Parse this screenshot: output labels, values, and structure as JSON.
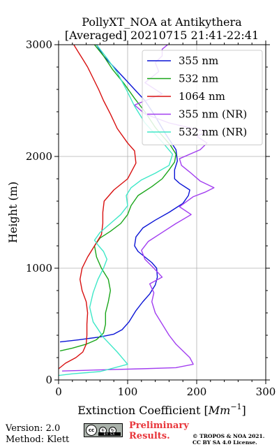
{
  "chart_data": {
    "type": "line",
    "title": "PollyXT_NOA at Antikythera",
    "subtitle": "[Averaged] 20210715 21:41-22:41",
    "xlabel": "Extinction Coefficient [Mm⁻¹]",
    "xlabel_main": "Extinction Coefficient [",
    "xlabel_unit": "Mm",
    "xlabel_exp": "−1",
    "xlabel_close": "]",
    "ylabel": "Height (m)",
    "xlim": [
      0,
      300
    ],
    "ylim": [
      0,
      3000
    ],
    "xticks": [
      0,
      100,
      200,
      300
    ],
    "yticks": [
      0,
      1000,
      2000,
      3000
    ],
    "grid": true,
    "legend_position": "top-right",
    "series": [
      {
        "name": "355 nm",
        "color": "#0a14d6",
        "x": [
          2,
          30,
          60,
          80,
          92,
          102,
          112,
          122,
          132,
          140,
          143,
          142,
          135,
          125,
          115,
          110,
          112,
          122,
          140,
          160,
          180,
          188,
          190,
          175,
          168,
          168,
          172,
          170,
          155,
          138,
          125,
          110,
          95,
          80,
          65,
          55
        ],
        "y": [
          340,
          360,
          385,
          410,
          450,
          520,
          620,
          700,
          770,
          850,
          920,
          1000,
          1050,
          1100,
          1150,
          1200,
          1280,
          1360,
          1430,
          1500,
          1580,
          1650,
          1700,
          1760,
          1800,
          1880,
          1960,
          2060,
          2200,
          2380,
          2500,
          2600,
          2700,
          2800,
          2900,
          3000
        ]
      },
      {
        "name": "532 nm",
        "color": "#1aa61a",
        "x": [
          2,
          20,
          40,
          55,
          65,
          68,
          68,
          72,
          75,
          72,
          62,
          55,
          52,
          60,
          75,
          90,
          100,
          105,
          115,
          135,
          150,
          160,
          168,
          170,
          162,
          140,
          125,
          110,
          95,
          78,
          65,
          52
        ],
        "y": [
          260,
          285,
          320,
          360,
          420,
          500,
          600,
          700,
          800,
          900,
          1000,
          1100,
          1200,
          1270,
          1330,
          1400,
          1480,
          1560,
          1650,
          1730,
          1800,
          1880,
          1950,
          2020,
          2100,
          2260,
          2400,
          2520,
          2650,
          2780,
          2900,
          3000
        ]
      },
      {
        "name": "1064 nm",
        "color": "#d81010",
        "x": [
          0,
          10,
          25,
          35,
          40,
          41,
          41,
          42,
          40,
          34,
          31,
          34,
          42,
          52,
          62,
          64,
          64,
          66,
          80,
          100,
          112,
          110,
          100,
          85,
          75,
          65,
          58,
          50,
          42,
          35,
          28,
          22
        ],
        "y": [
          100,
          150,
          200,
          250,
          320,
          400,
          500,
          600,
          700,
          800,
          900,
          1000,
          1100,
          1200,
          1300,
          1400,
          1500,
          1600,
          1700,
          1800,
          1940,
          2050,
          2120,
          2250,
          2380,
          2500,
          2600,
          2700,
          2800,
          2870,
          2940,
          3000
        ]
      },
      {
        "name": "355 nm (NR)",
        "color": "#a23ef0",
        "x": [
          5,
          60,
          120,
          170,
          195,
          190,
          180,
          170,
          160,
          150,
          140,
          135,
          138,
          132,
          150,
          138,
          125,
          120,
          130,
          150,
          170,
          192,
          175,
          195,
          212,
          225,
          205,
          190,
          178,
          175,
          205,
          215,
          200,
          215,
          160,
          125,
          110,
          150,
          125,
          145,
          140,
          150,
          150,
          158
        ],
        "y": [
          80,
          90,
          100,
          110,
          140,
          200,
          260,
          320,
          400,
          500,
          600,
          700,
          780,
          860,
          920,
          1000,
          1080,
          1160,
          1240,
          1320,
          1400,
          1480,
          1550,
          1640,
          1680,
          1720,
          1780,
          1860,
          1920,
          1980,
          2060,
          2120,
          2180,
          2220,
          2300,
          2380,
          2460,
          2560,
          2660,
          2760,
          2840,
          2900,
          2960,
          3000
        ]
      },
      {
        "name": "532 nm (NR)",
        "color": "#3ee8c8",
        "x": [
          0,
          20,
          60,
          100,
          85,
          65,
          50,
          45,
          50,
          57,
          65,
          70,
          65,
          58,
          52,
          60,
          75,
          90,
          100,
          98,
          105,
          120,
          140,
          160,
          165,
          150,
          125,
          110,
          98,
          85,
          70,
          55
        ],
        "y": [
          40,
          55,
          75,
          140,
          250,
          380,
          520,
          650,
          780,
          900,
          1000,
          1080,
          1150,
          1200,
          1250,
          1320,
          1400,
          1480,
          1560,
          1650,
          1720,
          1790,
          1850,
          1920,
          2020,
          2130,
          2300,
          2450,
          2600,
          2750,
          2880,
          3000
        ]
      }
    ]
  },
  "footer": {
    "version": "Version: 2.0",
    "method": "Method: Klett",
    "badge_cc": "cc",
    "badge_by": "①",
    "badge_sa": "↻",
    "badge_strip": "BY SA",
    "preliminary_line1": "Preliminary",
    "preliminary_line2": "Results.",
    "copyright_line1": "© TROPOS & NOA 2021.",
    "copyright_line2": "CC BY SA 4.0 License."
  }
}
